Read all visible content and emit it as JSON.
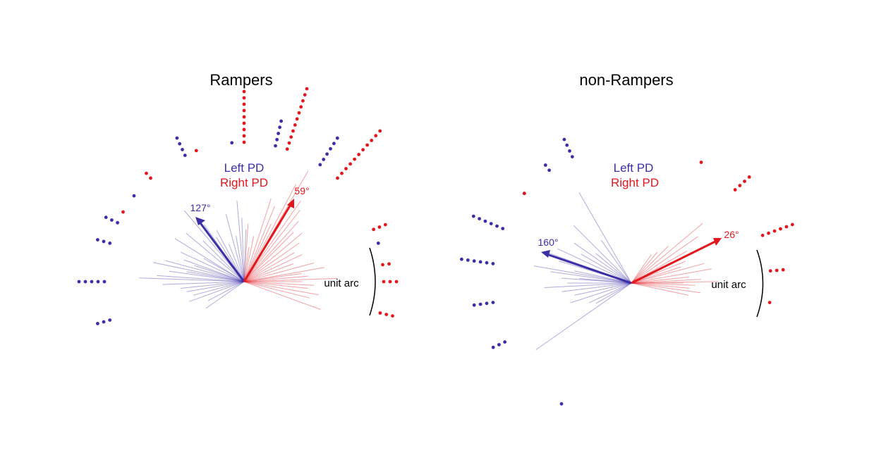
{
  "colors": {
    "left": "#3b2fa8",
    "right": "#e3171d",
    "axis": "#000000"
  },
  "chart_data": [
    {
      "type": "polar",
      "title": "Rampers",
      "legend": [
        "Left PD",
        "Right PD"
      ],
      "unit_arc_label": "unit arc",
      "left_pd": {
        "angle_deg": 127,
        "label": "127°"
      },
      "right_pd": {
        "angle_deg": 59,
        "label": "59°"
      },
      "right_lines": [
        [
          60,
          1.1
        ],
        [
          62,
          0.95
        ],
        [
          55,
          0.85
        ],
        [
          52,
          0.78
        ],
        [
          48,
          0.7
        ],
        [
          45,
          0.6
        ],
        [
          40,
          0.65
        ],
        [
          35,
          0.58
        ],
        [
          30,
          0.5
        ],
        [
          25,
          0.55
        ],
        [
          20,
          0.45
        ],
        [
          15,
          0.62
        ],
        [
          10,
          0.7
        ],
        [
          8,
          0.5
        ],
        [
          5,
          0.55
        ],
        [
          2,
          0.8
        ],
        [
          0,
          0.5
        ],
        [
          -3,
          0.6
        ],
        [
          -6,
          0.55
        ],
        [
          -10,
          0.65
        ],
        [
          -14,
          0.58
        ],
        [
          -20,
          0.7
        ],
        [
          68,
          0.7
        ],
        [
          72,
          0.75
        ],
        [
          78,
          0.4
        ],
        [
          82,
          0.3
        ],
        [
          86,
          0.5
        ],
        [
          65,
          0.55
        ],
        [
          58,
          0.6
        ]
      ],
      "left_lines": [
        [
          130,
          0.8
        ],
        [
          125,
          0.6
        ],
        [
          122,
          0.45
        ],
        [
          118,
          0.5
        ],
        [
          112,
          0.35
        ],
        [
          100,
          0.4
        ],
        [
          95,
          0.7
        ],
        [
          92,
          0.55
        ],
        [
          140,
          0.65
        ],
        [
          148,
          0.7
        ],
        [
          155,
          0.6
        ],
        [
          160,
          0.55
        ],
        [
          165,
          0.7
        ],
        [
          168,
          0.8
        ],
        [
          172,
          0.65
        ],
        [
          176,
          0.75
        ],
        [
          178,
          0.9
        ],
        [
          182,
          0.7
        ],
        [
          186,
          0.55
        ],
        [
          190,
          0.5
        ],
        [
          200,
          0.5
        ],
        [
          208,
          0.35
        ],
        [
          215,
          0.4
        ],
        [
          195,
          0.45
        ],
        [
          170,
          0.5
        ],
        [
          162,
          0.45
        ],
        [
          150,
          0.4
        ],
        [
          135,
          0.5
        ],
        [
          105,
          0.6
        ],
        [
          88,
          0.45
        ]
      ],
      "right_bins": [
        [
          90,
          9
        ],
        [
          72,
          11
        ],
        [
          48,
          11
        ],
        [
          22,
          3
        ],
        [
          7,
          2
        ],
        [
          0,
          3
        ],
        [
          -13,
          3
        ],
        [
          132,
          2
        ],
        [
          110,
          1
        ],
        [
          150,
          1
        ]
      ],
      "left_bins": [
        [
          115,
          4
        ],
        [
          95,
          1
        ],
        [
          77,
          5
        ],
        [
          57,
          6
        ],
        [
          142,
          1
        ],
        [
          155,
          3
        ],
        [
          164,
          3
        ],
        [
          180,
          5
        ],
        [
          196,
          3
        ],
        [
          16,
          1
        ]
      ]
    },
    {
      "type": "polar",
      "title": "non-Rampers",
      "legend": [
        "Left PD",
        "Right PD"
      ],
      "unit_arc_label": "unit arc",
      "left_pd": {
        "angle_deg": 160,
        "label": "160°"
      },
      "right_pd": {
        "angle_deg": 26,
        "label": "26°"
      },
      "right_lines": [
        [
          40,
          0.8
        ],
        [
          35,
          0.7
        ],
        [
          30,
          0.55
        ],
        [
          26,
          0.6
        ],
        [
          22,
          0.5
        ],
        [
          18,
          0.45
        ],
        [
          15,
          0.65
        ],
        [
          10,
          0.7
        ],
        [
          6,
          0.5
        ],
        [
          3,
          0.6
        ],
        [
          1,
          0.75
        ],
        [
          0,
          0.45
        ],
        [
          -2,
          0.55
        ],
        [
          -5,
          0.5
        ],
        [
          -8,
          0.6
        ],
        [
          -12,
          0.5
        ],
        [
          45,
          0.45
        ],
        [
          50,
          0.35
        ],
        [
          55,
          0.3
        ]
      ],
      "left_lines": [
        [
          120,
          0.9
        ],
        [
          135,
          0.7
        ],
        [
          145,
          0.6
        ],
        [
          150,
          0.5
        ],
        [
          155,
          0.7
        ],
        [
          160,
          0.8
        ],
        [
          163,
          0.65
        ],
        [
          168,
          0.5
        ],
        [
          172,
          0.7
        ],
        [
          176,
          0.6
        ],
        [
          180,
          0.55
        ],
        [
          183,
          0.75
        ],
        [
          187,
          0.6
        ],
        [
          192,
          0.5
        ],
        [
          198,
          0.55
        ],
        [
          205,
          0.4
        ],
        [
          210,
          0.35
        ],
        [
          215,
          1.0
        ],
        [
          125,
          0.45
        ],
        [
          140,
          0.4
        ],
        [
          170,
          0.85
        ],
        [
          175,
          0.45
        ]
      ],
      "right_bins": [
        [
          42,
          4
        ],
        [
          20,
          6
        ],
        [
          5,
          3
        ],
        [
          140,
          1
        ],
        [
          -8,
          1
        ],
        [
          60,
          1
        ]
      ],
      "left_bins": [
        [
          140,
          1
        ],
        [
          115,
          4
        ],
        [
          126,
          2
        ],
        [
          157,
          6
        ],
        [
          172,
          6
        ],
        [
          205,
          3
        ],
        [
          188,
          4
        ],
        [
          240,
          1
        ]
      ]
    }
  ]
}
